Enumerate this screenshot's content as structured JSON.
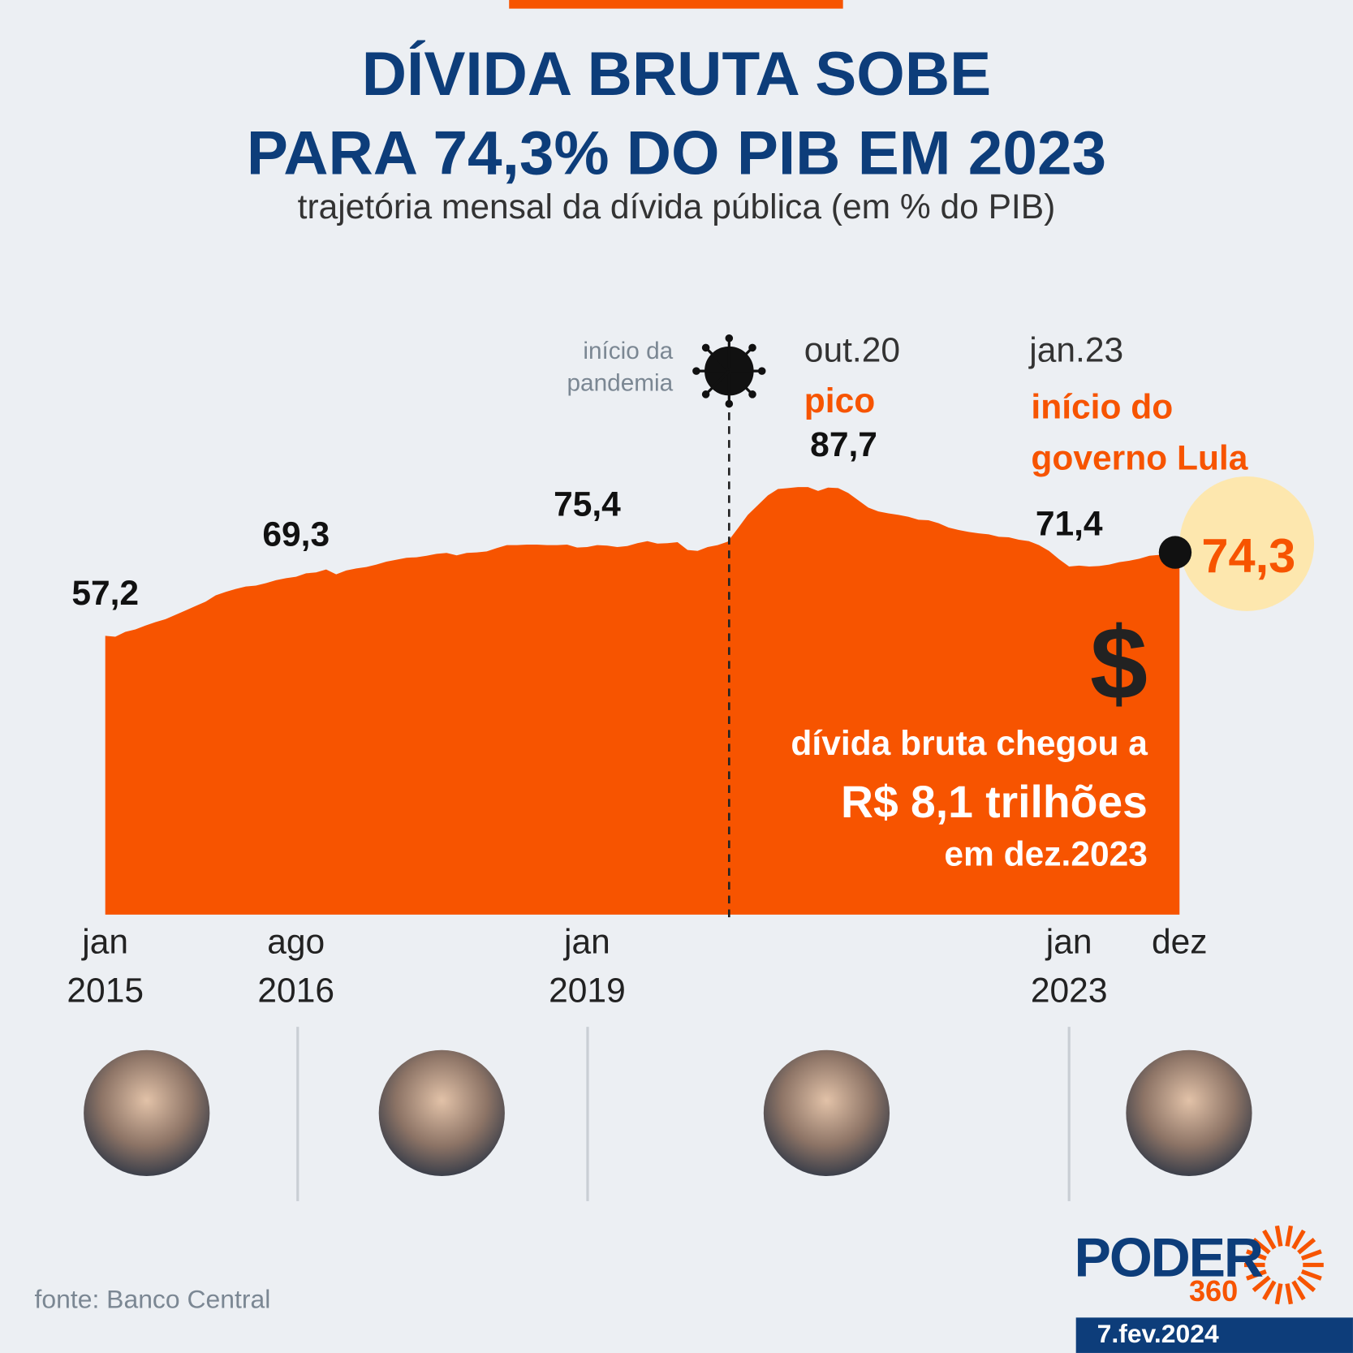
{
  "chart_data": {
    "type": "area",
    "title": [
      "DÍVIDA BRUTA SOBE",
      "PARA 74,3% DO PIB EM 2023"
    ],
    "subtitle": "trajetória mensal da dívida pública (em % do PIB)",
    "color": "#f75400",
    "categories": [
      "jan 2015",
      null,
      null,
      null,
      null,
      null,
      null,
      null,
      null,
      null,
      null,
      null,
      null,
      null,
      null,
      null,
      null,
      null,
      null,
      "ago 2016",
      null,
      null,
      null,
      null,
      null,
      null,
      null,
      null,
      null,
      null,
      null,
      null,
      null,
      null,
      null,
      null,
      null,
      null,
      null,
      null,
      null,
      null,
      null,
      null,
      null,
      null,
      null,
      null,
      "jan 2019",
      null,
      null,
      null,
      null,
      null,
      null,
      null,
      null,
      null,
      null,
      null,
      null,
      null,
      null,
      null,
      null,
      null,
      null,
      null,
      null,
      null,
      null,
      null,
      null,
      null,
      null,
      null,
      null,
      null,
      null,
      null,
      null,
      null,
      null,
      null,
      null,
      null,
      null,
      null,
      null,
      null,
      null,
      null,
      null,
      null,
      null,
      null,
      "jan 2023",
      null,
      null,
      null,
      null,
      null,
      null,
      null,
      null,
      null,
      null,
      "dez"
    ],
    "values": [
      57.2,
      57.0,
      58.0,
      58.5,
      59.3,
      60.0,
      60.6,
      61.5,
      62.4,
      63.3,
      64.2,
      65.5,
      66.2,
      66.8,
      67.3,
      67.5,
      68.0,
      68.6,
      69.0,
      69.3,
      70.0,
      70.2,
      70.8,
      69.8,
      70.6,
      71.0,
      71.3,
      71.8,
      72.4,
      72.8,
      73.2,
      73.3,
      73.6,
      74.0,
      74.2,
      73.7,
      74.2,
      74.3,
      74.5,
      75.2,
      75.8,
      75.8,
      75.9,
      75.9,
      75.8,
      75.8,
      75.9,
      75.3,
      75.4,
      75.8,
      75.7,
      75.4,
      75.6,
      76.2,
      76.6,
      76.1,
      76.2,
      76.4,
      74.8,
      74.6,
      75.4,
      75.8,
      76.5,
      79.2,
      82.0,
      84.0,
      86.0,
      87.3,
      87.5,
      87.7,
      87.7,
      86.9,
      87.6,
      87.5,
      86.5,
      85.0,
      83.5,
      82.7,
      82.3,
      82.0,
      81.6,
      81.0,
      80.9,
      80.3,
      79.4,
      78.9,
      78.5,
      78.2,
      78.0,
      77.5,
      77.4,
      76.9,
      76.6,
      75.8,
      74.6,
      72.9,
      71.4,
      71.6,
      71.4,
      71.5,
      71.8,
      72.3,
      72.6,
      73.0,
      73.6,
      73.8,
      74.1,
      74.3
    ],
    "value_labels": [
      "57,2",
      null,
      null,
      null,
      null,
      null,
      null,
      null,
      null,
      null,
      null,
      null,
      null,
      null,
      null,
      null,
      null,
      null,
      null,
      "69,3",
      null,
      null,
      null,
      null,
      null,
      null,
      null,
      null,
      null,
      null,
      null,
      null,
      null,
      null,
      null,
      null,
      null,
      null,
      null,
      null,
      null,
      null,
      null,
      null,
      null,
      null,
      null,
      null,
      "75,4",
      null,
      null,
      null,
      null,
      null,
      null,
      null,
      null,
      null,
      null,
      null,
      null,
      null,
      null,
      null,
      null,
      null,
      null,
      null,
      null,
      "87,7",
      null,
      null,
      null,
      null,
      null,
      null,
      null,
      null,
      null,
      null,
      null,
      null,
      null,
      null,
      null,
      null,
      null,
      null,
      null,
      null,
      null,
      null,
      null,
      null,
      null,
      null,
      "71,4",
      null,
      null,
      null,
      null,
      null,
      null,
      null,
      null,
      null,
      null,
      "74,3"
    ],
    "annotations": {
      "pandemic": "início da pandemia",
      "peak_date": "out.20",
      "peak_note": "pico",
      "lula_date": "jan.23",
      "lula_note": "início do governo Lula",
      "dollar": "$",
      "debt_line1": "dívida bruta chegou a",
      "debt_line2": "R$ 8,1 trilhões",
      "debt_line3": "em dez.2023"
    },
    "source": "fonte: Banco Central",
    "logo": "PODER",
    "logo_number": "360",
    "date": "7.fev.2024"
  }
}
